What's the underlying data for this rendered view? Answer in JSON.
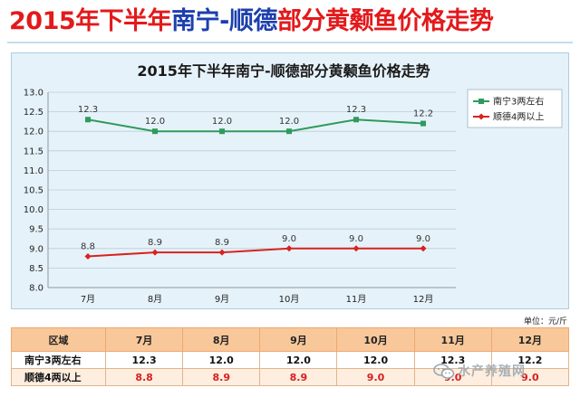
{
  "headline": {
    "part1": "2015年下半年",
    "part2": "南宁-顺德",
    "part3": "部分黄颡鱼价格走势"
  },
  "chart_data": {
    "type": "line",
    "title": "2015年下半年南宁-顺德部分黄颡鱼价格走势",
    "categories": [
      "7月",
      "8月",
      "9月",
      "10月",
      "11月",
      "12月"
    ],
    "series": [
      {
        "name": "南宁3两左右",
        "values": [
          12.3,
          12.0,
          12.0,
          12.0,
          12.3,
          12.2
        ],
        "color": "#2e9a5c"
      },
      {
        "name": "顺德4两以上",
        "values": [
          8.8,
          8.9,
          8.9,
          9.0,
          9.0,
          9.0
        ],
        "color": "#d8231f"
      }
    ],
    "ylim": [
      8.0,
      13.0
    ],
    "yticks": [
      "8.0",
      "8.5",
      "9.0",
      "9.5",
      "10.0",
      "10.5",
      "11.0",
      "11.5",
      "12.0",
      "12.5",
      "13.0"
    ],
    "grid": true,
    "legend": "top-right"
  },
  "unit_note": "单位：元/斤",
  "table": {
    "header": [
      "区域",
      "7月",
      "8月",
      "9月",
      "10月",
      "11月",
      "12月"
    ],
    "rows": [
      {
        "label": "南宁3两左右",
        "cells": [
          "12.3",
          "12.0",
          "12.0",
          "12.0",
          "12.3",
          "12.2"
        ]
      },
      {
        "label": "顺德4两以上",
        "cells": [
          "8.8",
          "8.9",
          "8.9",
          "9.0",
          "9.0",
          "9.0"
        ]
      }
    ]
  },
  "watermark": "水产养殖网"
}
